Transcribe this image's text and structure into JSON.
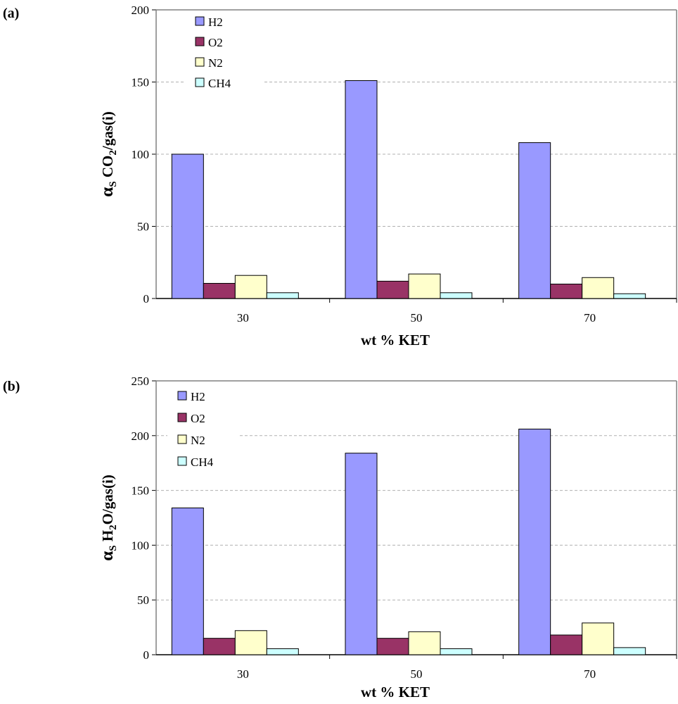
{
  "chart_data": [
    {
      "panel_label": "(a)",
      "type": "bar",
      "categories": [
        "30",
        "50",
        "70"
      ],
      "series": [
        {
          "name": "H2",
          "values": [
            100,
            151,
            108
          ],
          "color": "#9999ff"
        },
        {
          "name": "O2",
          "values": [
            10.5,
            12,
            10
          ],
          "color": "#993366"
        },
        {
          "name": "N2",
          "values": [
            16,
            17,
            14.5
          ],
          "color": "#ffffcc"
        },
        {
          "name": "CH4",
          "values": [
            4,
            4,
            3.3
          ],
          "color": "#ccffff"
        }
      ],
      "ylim": [
        0,
        200
      ],
      "yticks": [
        "0",
        "50",
        "100",
        "150",
        "200"
      ],
      "ylabel": {
        "alpha": "α",
        "sub1": "S",
        "mid": " CO",
        "sub2": "2",
        "end": "/gas(i)"
      },
      "xlabel": "wt % KET",
      "legend_position": "top-left",
      "grid": true
    },
    {
      "panel_label": "(b)",
      "type": "bar",
      "categories": [
        "30",
        "50",
        "70"
      ],
      "series": [
        {
          "name": "H2",
          "values": [
            134,
            184,
            206
          ],
          "color": "#9999ff"
        },
        {
          "name": "O2",
          "values": [
            15,
            15,
            18
          ],
          "color": "#993366"
        },
        {
          "name": "N2",
          "values": [
            22,
            21,
            29
          ],
          "color": "#ffffcc"
        },
        {
          "name": "CH4",
          "values": [
            5.5,
            5.5,
            6.5
          ],
          "color": "#ccffff"
        }
      ],
      "ylim": [
        0,
        250
      ],
      "yticks": [
        "0",
        "50",
        "100",
        "150",
        "200",
        "250"
      ],
      "ylabel": {
        "alpha": "α",
        "sub1": "S",
        "mid": " H",
        "sub2": "2",
        "end": "O/gas(i)"
      },
      "xlabel": "wt % KET",
      "legend_position": "top-left",
      "grid": true
    }
  ]
}
